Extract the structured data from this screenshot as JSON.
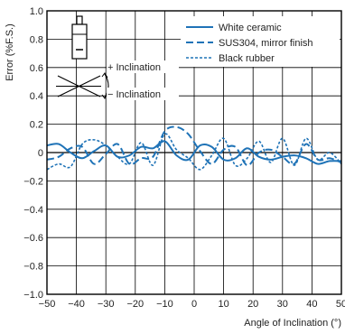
{
  "chart_data": {
    "type": "line",
    "xlabel": "Angle of Inclination (°)",
    "ylabel": "Error (%F.S.)",
    "xlim": [
      -50,
      50
    ],
    "ylim": [
      -1.0,
      1.0
    ],
    "x_ticks": [
      "−50",
      "−40",
      "−30",
      "−20",
      "−10",
      "0",
      "10",
      "20",
      "30",
      "40",
      "50"
    ],
    "y_ticks": [
      "1.0",
      "0.8",
      "0.6",
      "0.4",
      "0.2",
      "0",
      "−0.2",
      "−0.4",
      "−0.6",
      "−0.8",
      "−1.0"
    ],
    "grid": true,
    "legend_position": "top-right",
    "colors": {
      "series": "#1f73b7",
      "grid": "#000000"
    },
    "series": [
      {
        "name": "White ceramic",
        "style": "solid",
        "x": [
          -50,
          -46,
          -42,
          -38,
          -34,
          -30,
          -26,
          -22,
          -18,
          -14,
          -10,
          -6,
          -2,
          2,
          6,
          10,
          14,
          18,
          22,
          26,
          30,
          34,
          38,
          42,
          46,
          50
        ],
        "y": [
          0.05,
          0.06,
          0.0,
          -0.04,
          0.01,
          0.05,
          -0.03,
          -0.02,
          0.04,
          0.03,
          0.08,
          -0.02,
          -0.05,
          0.05,
          0.04,
          -0.05,
          -0.04,
          0.03,
          -0.03,
          -0.05,
          -0.03,
          -0.02,
          -0.04,
          -0.08,
          -0.06,
          -0.06
        ]
      },
      {
        "name": "SUS304, mirror finish",
        "style": "dashed",
        "x": [
          -50,
          -46,
          -42,
          -38,
          -34,
          -30,
          -26,
          -22,
          -18,
          -14,
          -10,
          -6,
          -2,
          2,
          6,
          10,
          14,
          18,
          22,
          26,
          30,
          34,
          38,
          42,
          46,
          50
        ],
        "y": [
          -0.05,
          -0.03,
          0.03,
          0.04,
          -0.08,
          -0.01,
          0.06,
          -0.08,
          -0.04,
          -0.03,
          0.15,
          0.18,
          0.13,
          0.01,
          -0.08,
          0.02,
          0.04,
          -0.09,
          0.0,
          0.02,
          -0.03,
          -0.08,
          0.06,
          -0.05,
          -0.04,
          -0.07
        ]
      },
      {
        "name": "Black rubber",
        "style": "dotted",
        "x": [
          -50,
          -46,
          -42,
          -38,
          -34,
          -30,
          -26,
          -22,
          -18,
          -14,
          -10,
          -6,
          -2,
          2,
          6,
          10,
          14,
          18,
          22,
          26,
          30,
          34,
          38,
          42,
          46,
          50
        ],
        "y": [
          -0.12,
          -0.08,
          -0.1,
          0.06,
          0.09,
          0.05,
          -0.03,
          -0.08,
          0.07,
          -0.09,
          0.13,
          0.02,
          -0.04,
          -0.12,
          -0.02,
          0.1,
          -0.09,
          -0.04,
          0.08,
          -0.07,
          0.1,
          -0.09,
          0.1,
          -0.05,
          0.0,
          -0.08
        ]
      }
    ],
    "annotations": {
      "plus_inclination": "+ Inclination",
      "minus_inclination": "− Inclination"
    }
  }
}
